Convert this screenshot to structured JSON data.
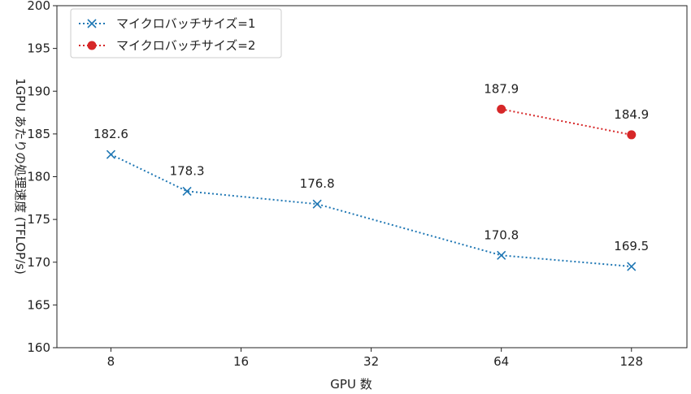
{
  "chart_data": {
    "type": "line",
    "title": "",
    "xlabel": "GPU 数",
    "ylabel": "1GPU あたりの処理速度 (TFLOP/s)",
    "ylim": [
      160,
      200
    ],
    "yticks": [
      160,
      165,
      170,
      175,
      180,
      185,
      190,
      195,
      200
    ],
    "xticks": [
      8,
      16,
      32,
      64,
      128
    ],
    "x_scale": "log2",
    "grid": false,
    "legend_position": "top-left",
    "series": [
      {
        "name": "マイクロバッチサイズ=1",
        "color": "#1f77b4",
        "marker": "x",
        "linestyle": "dotted",
        "x": [
          8,
          12,
          24,
          64,
          128
        ],
        "y": [
          182.6,
          178.3,
          176.8,
          170.8,
          169.5
        ],
        "labels": [
          "182.6",
          "178.3",
          "176.8",
          "170.8",
          "169.5"
        ]
      },
      {
        "name": "マイクロバッチサイズ=2",
        "color": "#d62728",
        "marker": "circle",
        "linestyle": "dotted",
        "x": [
          64,
          128
        ],
        "y": [
          187.9,
          184.9
        ],
        "labels": [
          "187.9",
          "184.9"
        ]
      }
    ]
  }
}
